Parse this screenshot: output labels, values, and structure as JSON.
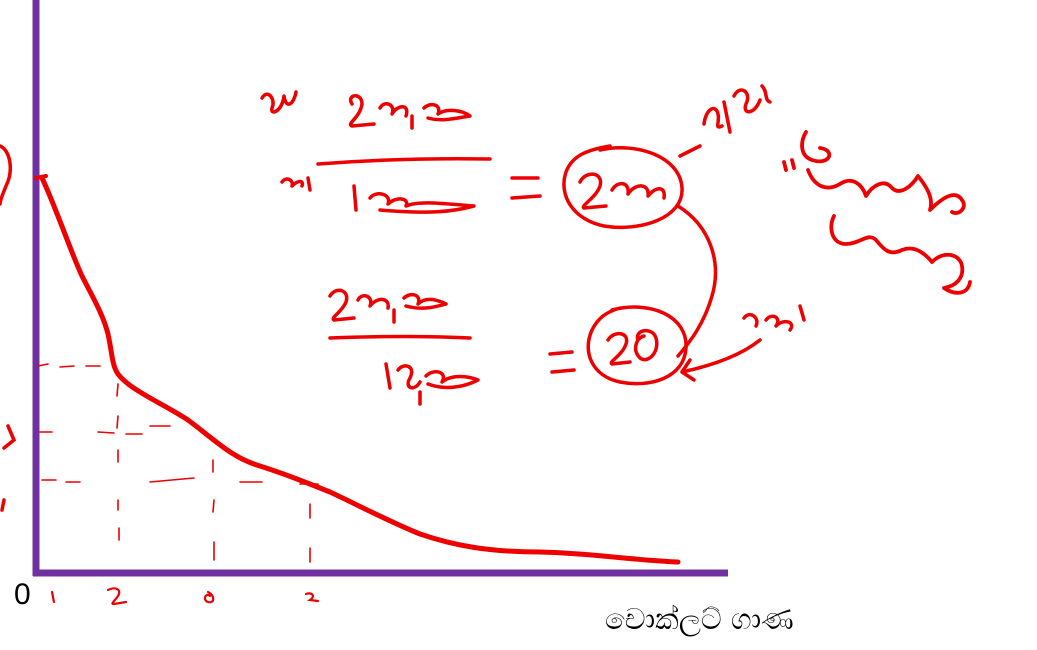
{
  "diagram": {
    "origin_label": "0",
    "x_axis_label": "චොක්ලට් ගාණ",
    "axis_color": "#7030A0",
    "ink_color": "#EE0000",
    "text_color": "#000000"
  }
}
